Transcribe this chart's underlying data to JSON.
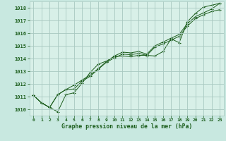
{
  "background_color": "#c8e8e0",
  "plot_bg_color": "#d8f0e8",
  "grid_color": "#a8c8c0",
  "line_color": "#1a5c1a",
  "xlabel": "Graphe pression niveau de la mer (hPa)",
  "ylim": [
    1009.5,
    1018.5
  ],
  "xlim": [
    -0.5,
    23.5
  ],
  "yticks": [
    1010,
    1011,
    1012,
    1013,
    1014,
    1015,
    1016,
    1017,
    1018
  ],
  "xticks": [
    0,
    1,
    2,
    3,
    4,
    5,
    6,
    7,
    8,
    9,
    10,
    11,
    12,
    13,
    14,
    15,
    16,
    17,
    18,
    19,
    20,
    21,
    22,
    23
  ],
  "series": [
    [
      1011.1,
      1010.5,
      1010.15,
      1009.8,
      1011.15,
      1011.3,
      1012.05,
      1012.9,
      1013.55,
      1013.8,
      1014.15,
      1014.2,
      1014.15,
      1014.25,
      1014.25,
      1014.2,
      1014.55,
      1015.55,
      1015.25,
      1016.9,
      1017.55,
      1018.05,
      1018.2,
      1018.35
    ],
    [
      1011.1,
      1010.5,
      1010.15,
      1011.15,
      1011.55,
      1011.6,
      1012.2,
      1012.6,
      1013.15,
      1013.7,
      1014.05,
      1014.35,
      1014.3,
      1014.4,
      1014.25,
      1014.9,
      1015.15,
      1015.45,
      1015.75,
      1016.55,
      1017.15,
      1017.45,
      1017.7,
      1017.85
    ],
    [
      1011.1,
      1010.5,
      1010.15,
      1011.15,
      1011.55,
      1011.9,
      1012.3,
      1012.7,
      1013.2,
      1013.75,
      1014.2,
      1014.5,
      1014.45,
      1014.55,
      1014.35,
      1015.0,
      1015.3,
      1015.6,
      1015.9,
      1016.75,
      1017.3,
      1017.6,
      1017.9,
      1018.35
    ]
  ]
}
